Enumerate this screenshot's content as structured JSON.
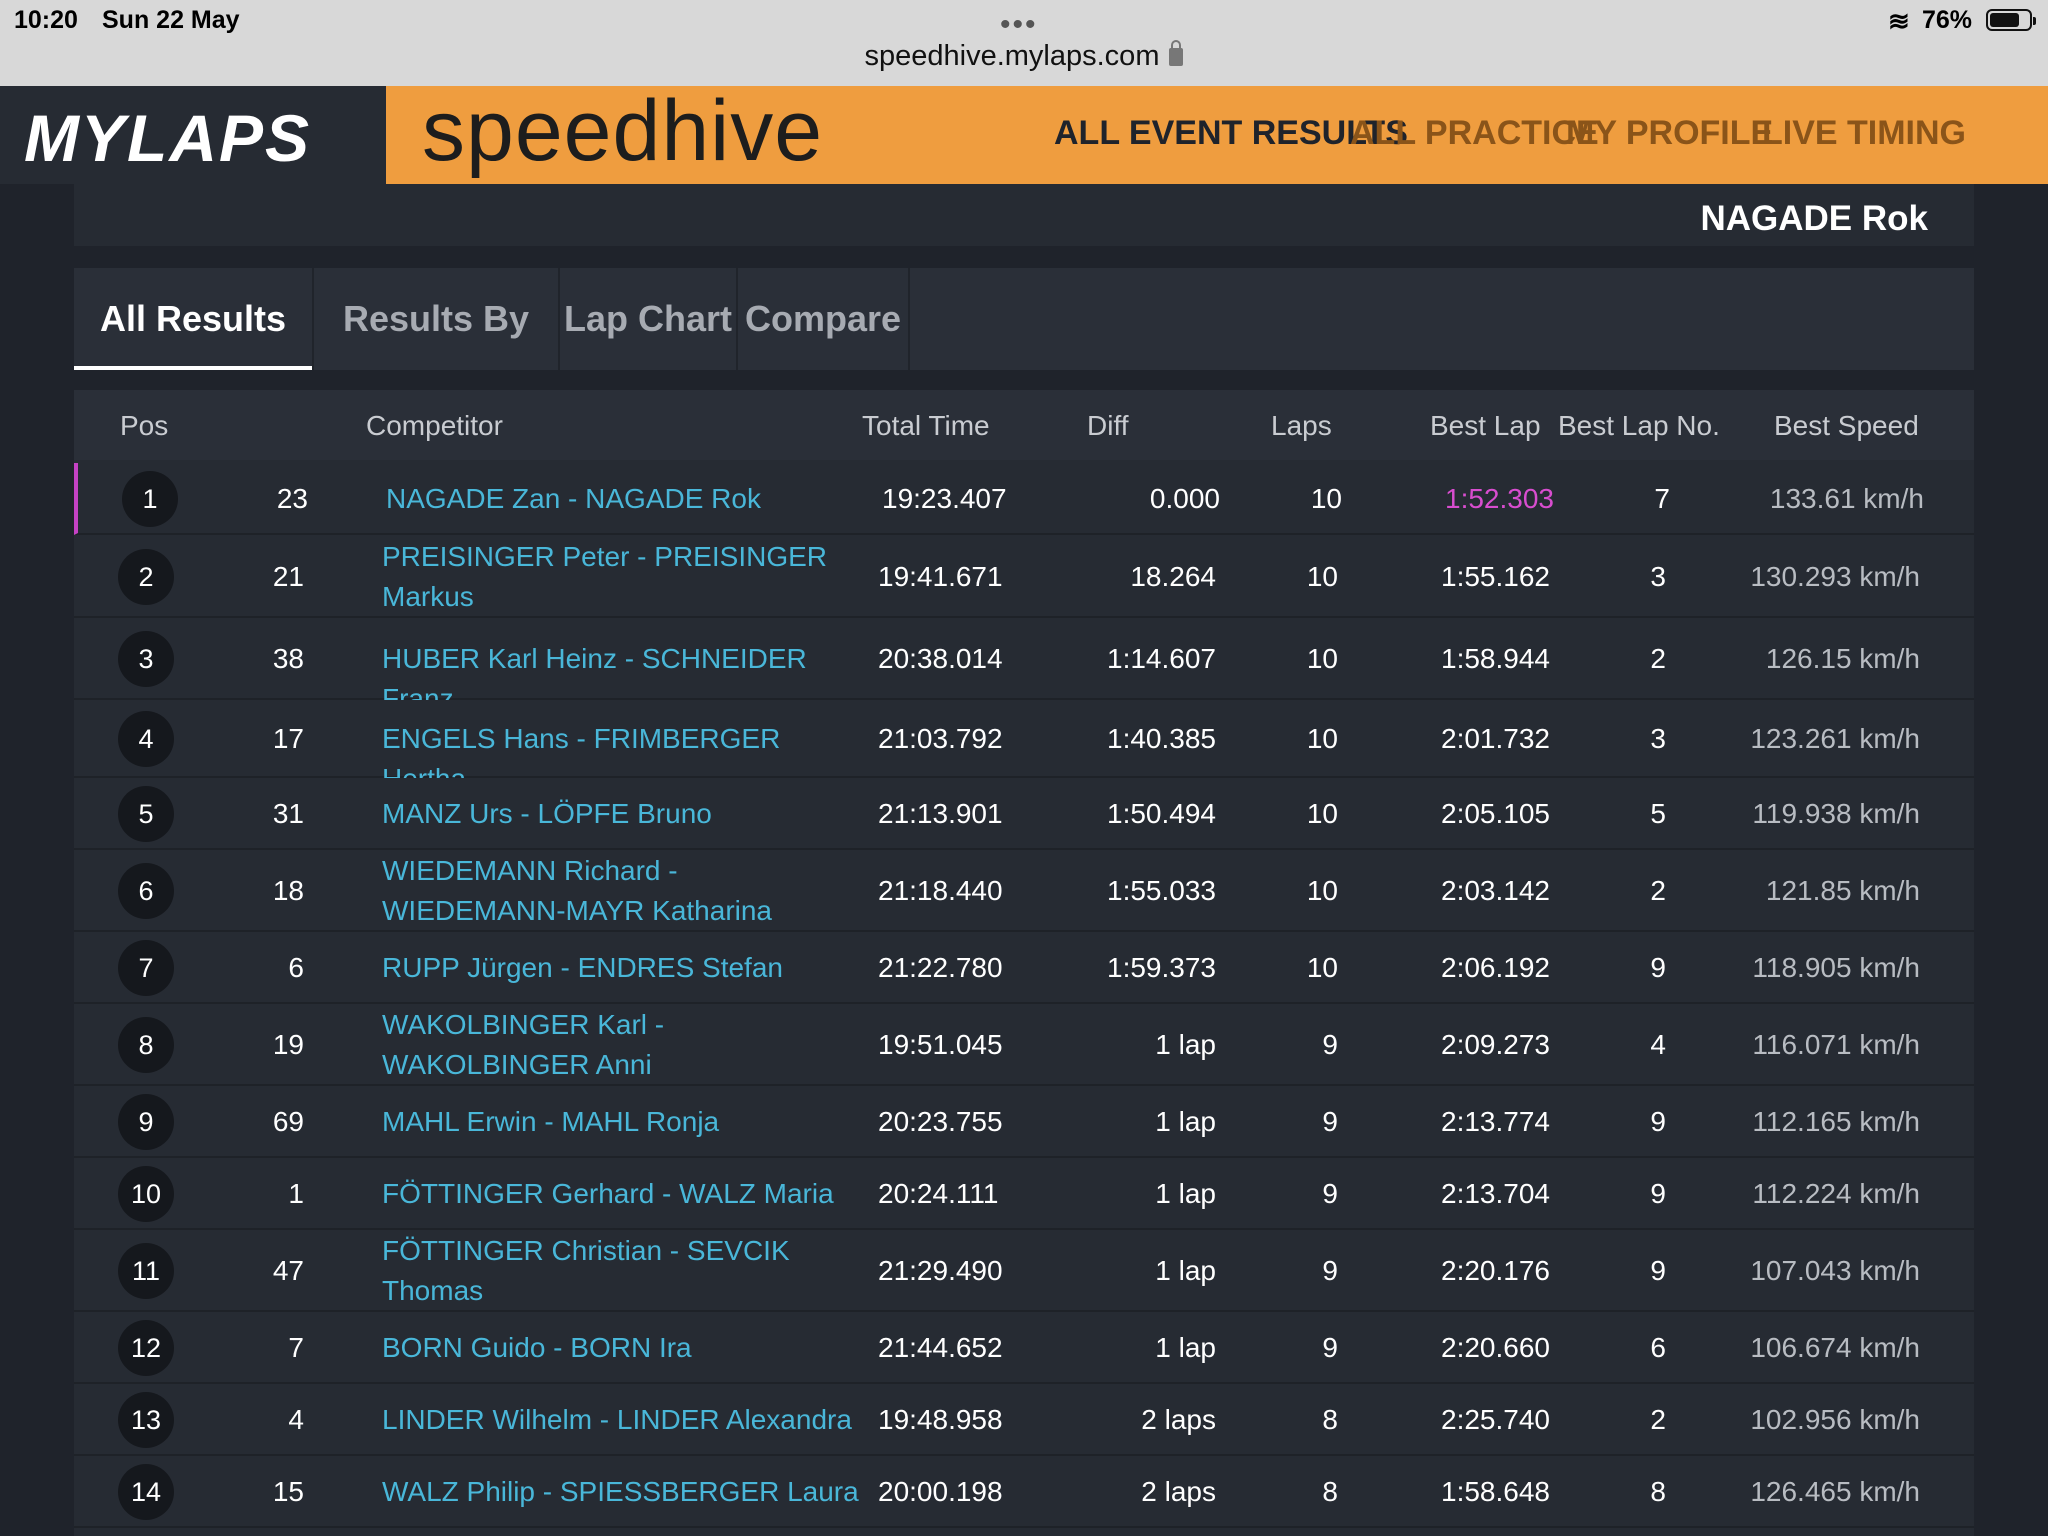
{
  "status_bar": {
    "time": "10:20",
    "date": "Sun 22 May",
    "url": "speedhive.mylaps.com",
    "battery": "76%",
    "battery_level": 0.76
  },
  "header": {
    "brand": "MYLAPS",
    "product": "speedhive",
    "nav": [
      {
        "label": "ALL EVENT RESULTS",
        "active": true
      },
      {
        "label": "ALL PRACTICE",
        "active": false
      },
      {
        "label": "MY PROFILE",
        "active": false
      },
      {
        "label": "LIVE TIMING",
        "active": false
      }
    ]
  },
  "top_strip": {
    "name": "NAGADE Rok"
  },
  "tabs": [
    {
      "label": "All Results",
      "active": true
    },
    {
      "label": "Results By Class",
      "active": false
    },
    {
      "label": "Lap Chart",
      "active": false
    },
    {
      "label": "Compare",
      "active": false
    }
  ],
  "table": {
    "columns": {
      "pos": "Pos",
      "competitor": "Competitor",
      "total_time": "Total Time",
      "diff": "Diff",
      "laps": "Laps",
      "best_lap": "Best Lap",
      "best_lap_no": "Best Lap No.",
      "best_speed": "Best Speed"
    },
    "rows": [
      {
        "pos": "1",
        "nr": "23",
        "competitor": "NAGADE Zan - NAGADE Rok",
        "total_time": "19:23.407",
        "diff": "0.000",
        "laps": "10",
        "best_lap": "1:52.303",
        "best_lap_no": "7",
        "best_speed": "133.61 km/h",
        "highlight": true
      },
      {
        "pos": "2",
        "nr": "21",
        "competitor": "PREISINGER Peter - PREISINGER Markus",
        "total_time": "19:41.671",
        "diff": "18.264",
        "laps": "10",
        "best_lap": "1:55.162",
        "best_lap_no": "3",
        "best_speed": "130.293 km/h"
      },
      {
        "pos": "3",
        "nr": "38",
        "competitor": "HUBER Karl Heinz - SCHNEIDER Franz",
        "total_time": "20:38.014",
        "diff": "1:14.607",
        "laps": "10",
        "best_lap": "1:58.944",
        "best_lap_no": "2",
        "best_speed": "126.15 km/h"
      },
      {
        "pos": "4",
        "nr": "17",
        "competitor": "ENGELS Hans - FRIMBERGER Hertha",
        "total_time": "21:03.792",
        "diff": "1:40.385",
        "laps": "10",
        "best_lap": "2:01.732",
        "best_lap_no": "3",
        "best_speed": "123.261 km/h"
      },
      {
        "pos": "5",
        "nr": "31",
        "competitor": "MANZ Urs - LÖPFE Bruno",
        "total_time": "21:13.901",
        "diff": "1:50.494",
        "laps": "10",
        "best_lap": "2:05.105",
        "best_lap_no": "5",
        "best_speed": "119.938 km/h"
      },
      {
        "pos": "6",
        "nr": "18",
        "competitor": "WIEDEMANN Richard - WIEDEMANN-MAYR Katharina",
        "total_time": "21:18.440",
        "diff": "1:55.033",
        "laps": "10",
        "best_lap": "2:03.142",
        "best_lap_no": "2",
        "best_speed": "121.85 km/h"
      },
      {
        "pos": "7",
        "nr": "6",
        "competitor": "RUPP Jürgen - ENDRES Stefan",
        "total_time": "21:22.780",
        "diff": "1:59.373",
        "laps": "10",
        "best_lap": "2:06.192",
        "best_lap_no": "9",
        "best_speed": "118.905 km/h"
      },
      {
        "pos": "8",
        "nr": "19",
        "competitor": "WAKOLBINGER Karl - WAKOLBINGER Anni",
        "total_time": "19:51.045",
        "diff": "1 lap",
        "laps": "9",
        "best_lap": "2:09.273",
        "best_lap_no": "4",
        "best_speed": "116.071 km/h"
      },
      {
        "pos": "9",
        "nr": "69",
        "competitor": "MAHL Erwin - MAHL Ronja",
        "total_time": "20:23.755",
        "diff": "1 lap",
        "laps": "9",
        "best_lap": "2:13.774",
        "best_lap_no": "9",
        "best_speed": "112.165 km/h"
      },
      {
        "pos": "10",
        "nr": "1",
        "competitor": "FÖTTINGER Gerhard - WALZ Maria",
        "total_time": "20:24.111",
        "diff": "1 lap",
        "laps": "9",
        "best_lap": "2:13.704",
        "best_lap_no": "9",
        "best_speed": "112.224 km/h"
      },
      {
        "pos": "11",
        "nr": "47",
        "competitor": "FÖTTINGER Christian - SEVCIK Thomas",
        "total_time": "21:29.490",
        "diff": "1 lap",
        "laps": "9",
        "best_lap": "2:20.176",
        "best_lap_no": "9",
        "best_speed": "107.043 km/h"
      },
      {
        "pos": "12",
        "nr": "7",
        "competitor": "BORN Guido - BORN Ira",
        "total_time": "21:44.652",
        "diff": "1 lap",
        "laps": "9",
        "best_lap": "2:20.660",
        "best_lap_no": "6",
        "best_speed": "106.674 km/h"
      },
      {
        "pos": "13",
        "nr": "4",
        "competitor": "LINDER Wilhelm - LINDER Alexandra",
        "total_time": "19:48.958",
        "diff": "2 laps",
        "laps": "8",
        "best_lap": "2:25.740",
        "best_lap_no": "2",
        "best_speed": "102.956 km/h"
      },
      {
        "pos": "14",
        "nr": "15",
        "competitor": "WALZ Philip - SPIESSBERGER Laura",
        "total_time": "20:00.198",
        "diff": "2 laps",
        "laps": "8",
        "best_lap": "1:58.648",
        "best_lap_no": "8",
        "best_speed": "126.465 km/h"
      }
    ]
  },
  "colors": {
    "accent_orange": "#ef9d3f",
    "link_blue": "#49b7d9",
    "best_lap_magenta": "#d84dcf"
  }
}
